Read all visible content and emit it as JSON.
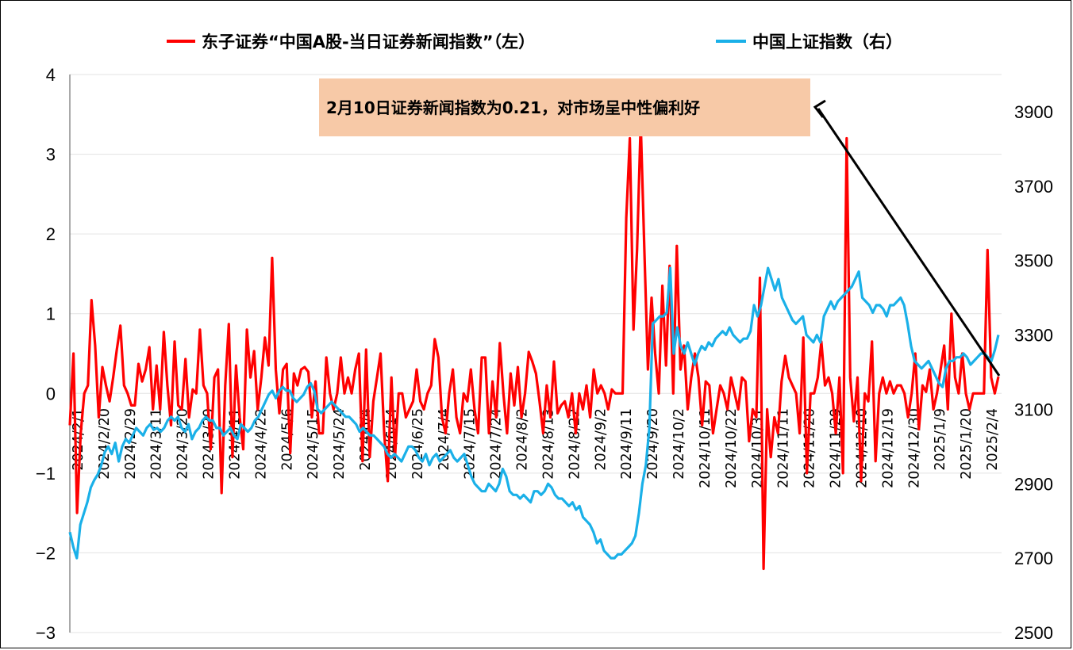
{
  "chart_data": {
    "type": "line",
    "title": "",
    "legend": {
      "position": "top",
      "entries": [
        {
          "label": "东子证券“中国A股-当日证券新闻指数”（左）",
          "color": "#ff0000"
        },
        {
          "label": "中国上证指数（右）",
          "color": "#1ab0e8"
        }
      ]
    },
    "annotation": {
      "text": "2月10日证券新闻指数为0.21，对市场呈中性偏利好",
      "box_color": "#f7c9a7",
      "arrow_color": "#000000"
    },
    "grid": true,
    "y_left": {
      "ylim": [
        -3,
        4
      ],
      "ticks": [
        "−3",
        "−2",
        "−1",
        "0",
        "1",
        "2",
        "3",
        "4"
      ]
    },
    "y_right": {
      "ylim": [
        2500,
        4000
      ],
      "ticks": [
        "2500",
        "2700",
        "2900",
        "3100",
        "3300",
        "3500",
        "3700",
        "3900"
      ]
    },
    "x_tick_labels": [
      "2024/2/1",
      "2024/2/20",
      "2024/2/29",
      "2024/3/11",
      "2024/3/20",
      "2024/3/29",
      "2024/4/11",
      "2024/4/22",
      "2024/5/6",
      "2024/5/15",
      "2024/5/24",
      "2024/6/4",
      "2024/6/14",
      "2024/6/25",
      "2024/7/4",
      "2024/7/15",
      "2024/7/24",
      "2024/8/2",
      "2024/8/13",
      "2024/8/22",
      "2024/9/2",
      "2024/9/11",
      "2024/9/20",
      "2024/10/2",
      "2024/10/11",
      "2024/10/22",
      "2024/10/31",
      "2024/11/11",
      "2024/11/20",
      "2024/11/29",
      "2024/12/10",
      "2024/12/19",
      "2024/12/30",
      "2025/1/9",
      "2025/1/20",
      "2025/2/4"
    ],
    "series": [
      {
        "name": "东子证券“中国A股-当日证券新闻指数”（左）",
        "axis": "left",
        "color": "#ff0000",
        "values": [
          -0.4,
          0.5,
          -1.5,
          -0.5,
          0,
          0.1,
          1.17,
          0.6,
          -0.3,
          0.33,
          0.1,
          -0.1,
          0.2,
          0.55,
          0.85,
          0.1,
          0,
          -0.15,
          -0.15,
          0.37,
          0.15,
          0.3,
          0.58,
          -0.2,
          0.35,
          -0.2,
          0.77,
          0.1,
          -0.4,
          0.65,
          -0.15,
          -0.2,
          0.43,
          -0.3,
          0.05,
          0,
          0.8,
          0.1,
          0,
          -0.7,
          0.2,
          0.3,
          -1.25,
          0.1,
          0.87,
          -0.8,
          0.35,
          -0.3,
          -0.7,
          0.8,
          0.2,
          0.53,
          -0.2,
          0.2,
          0.7,
          0.35,
          1.7,
          0.3,
          -0.25,
          0.3,
          0.37,
          -0.75,
          0.25,
          0.1,
          0.3,
          0.33,
          0.27,
          -0.3,
          0.15,
          -0.5,
          -0.5,
          0.45,
          0,
          -0.2,
          0,
          0.45,
          0,
          0.2,
          0,
          0.3,
          0.5,
          -0.85,
          0.55,
          -0.8,
          -0.1,
          0.2,
          0.5,
          -0.5,
          -1.1,
          0.2,
          -0.8,
          0,
          0,
          -0.3,
          -0.2,
          -0.1,
          0.3,
          -0.1,
          -0.2,
          0,
          0.1,
          0.68,
          0.45,
          -0.3,
          -0.5,
          0,
          0.3,
          -0.3,
          -0.5,
          0,
          -0.1,
          0.3,
          -0.2,
          -0.5,
          0.45,
          0.45,
          -0.5,
          0.15,
          -0.3,
          0.63,
          0,
          -0.5,
          0.25,
          -0.15,
          0.33,
          -0.3,
          0,
          0.52,
          0.4,
          0.25,
          -0.1,
          -0.5,
          0.1,
          -0.3,
          0.4,
          -0.25,
          -0.15,
          -0.1,
          -0.3,
          0,
          -0.5,
          0,
          -0.2,
          0.1,
          -0.3,
          0.3,
          0,
          0.1,
          0,
          -0.2,
          0.05,
          0,
          0,
          0,
          2.2,
          3.2,
          0.8,
          1.8,
          3.4,
          1.8,
          0.3,
          1.2,
          0.5,
          0,
          1.35,
          0.35,
          1.6,
          0,
          1.85,
          0.3,
          0.6,
          -0.2,
          0.2,
          0.5,
          0.2,
          -0.4,
          0.15,
          0.1,
          -0.5,
          -0.2,
          0.1,
          0,
          -0.2,
          0.2,
          0,
          -0.2,
          0.2,
          0.15,
          -0.6,
          -0.2,
          -0.3,
          1.45,
          -2.2,
          -0.2,
          -0.8,
          -0.3,
          -0.5,
          0.15,
          0.47,
          0.2,
          0.1,
          0,
          -0.5,
          0.7,
          -1,
          0,
          0,
          0.2,
          0.65,
          0.1,
          0.2,
          0,
          -0.5,
          0.2,
          -1,
          3.2,
          0.2,
          -0.35,
          0.2,
          -1.1,
          0,
          -0.1,
          0.65,
          -0.85,
          0,
          0.2,
          0,
          0.15,
          0,
          0.1,
          0.1,
          0,
          -0.3,
          0,
          0.5,
          -0.45,
          0.1,
          0.02,
          0.3,
          -0.2,
          0,
          0.3,
          0.6,
          -0.2,
          1,
          0.2,
          0,
          0.5,
          0,
          -0.2,
          0,
          0,
          0,
          0,
          1.8,
          0.2,
          0,
          0.21
        ],
        "note": "values approximated from image"
      },
      {
        "name": "中国上证指数（右）",
        "axis": "right",
        "color": "#1ab0e8",
        "values": [
          2770,
          2730,
          2700,
          2790,
          2820,
          2850,
          2890,
          2910,
          2925,
          2950,
          2985,
          3000,
          2980,
          3010,
          2960,
          3000,
          3020,
          3010,
          3030,
          3050,
          3040,
          3030,
          3050,
          3060,
          3045,
          3050,
          3040,
          3050,
          3070,
          3080,
          3070,
          3080,
          3050,
          3040,
          3060,
          3020,
          3040,
          3050,
          3070,
          3080,
          3070,
          3070,
          3050,
          3050,
          3030,
          3040,
          3050,
          3030,
          3020,
          3060,
          3050,
          3040,
          3050,
          3070,
          3080,
          3100,
          3120,
          3140,
          3150,
          3130,
          3150,
          3160,
          3150,
          3150,
          3130,
          3120,
          3130,
          3140,
          3160,
          3170,
          3150,
          3100,
          3090,
          3100,
          3110,
          3120,
          3110,
          3100,
          3090,
          3080,
          3080,
          3070,
          3060,
          3040,
          3050,
          3040,
          3030,
          3030,
          3020,
          3010,
          3000,
          2980,
          2970,
          2980,
          2970,
          2960,
          2980,
          3000,
          3000,
          2990,
          2970,
          2960,
          2980,
          2950,
          2970,
          2980,
          2960,
          2970,
          2980,
          2990,
          2970,
          2960,
          2970,
          2980,
          2950,
          2920,
          2900,
          2890,
          2880,
          2880,
          2900,
          2890,
          2880,
          2900,
          2940,
          2920,
          2880,
          2870,
          2870,
          2860,
          2870,
          2860,
          2850,
          2880,
          2880,
          2870,
          2880,
          2900,
          2890,
          2870,
          2860,
          2860,
          2850,
          2840,
          2850,
          2830,
          2840,
          2810,
          2800,
          2790,
          2770,
          2740,
          2750,
          2720,
          2710,
          2700,
          2700,
          2710,
          2710,
          2720,
          2730,
          2740,
          2760,
          2820,
          2900,
          2950,
          3050,
          3330,
          3340,
          3350,
          3350,
          3360,
          3480,
          3250,
          3320,
          3270,
          3250,
          3280,
          3250,
          3220,
          3250,
          3270,
          3260,
          3280,
          3270,
          3290,
          3300,
          3310,
          3300,
          3320,
          3300,
          3290,
          3280,
          3290,
          3290,
          3310,
          3380,
          3350,
          3380,
          3430,
          3480,
          3450,
          3420,
          3450,
          3400,
          3380,
          3360,
          3340,
          3330,
          3340,
          3350,
          3300,
          3290,
          3280,
          3300,
          3280,
          3350,
          3370,
          3390,
          3370,
          3390,
          3400,
          3410,
          3420,
          3430,
          3450,
          3470,
          3400,
          3390,
          3380,
          3360,
          3380,
          3380,
          3370,
          3350,
          3380,
          3380,
          3390,
          3400,
          3380,
          3330,
          3270,
          3230,
          3220,
          3210,
          3220,
          3230,
          3210,
          3190,
          3170,
          3160,
          3210,
          3230,
          3230,
          3240,
          3240,
          3250,
          3240,
          3220,
          3230,
          3240,
          3250,
          3250,
          3240,
          3230,
          3260,
          3300
        ],
        "note": "values approximated from image"
      }
    ]
  }
}
